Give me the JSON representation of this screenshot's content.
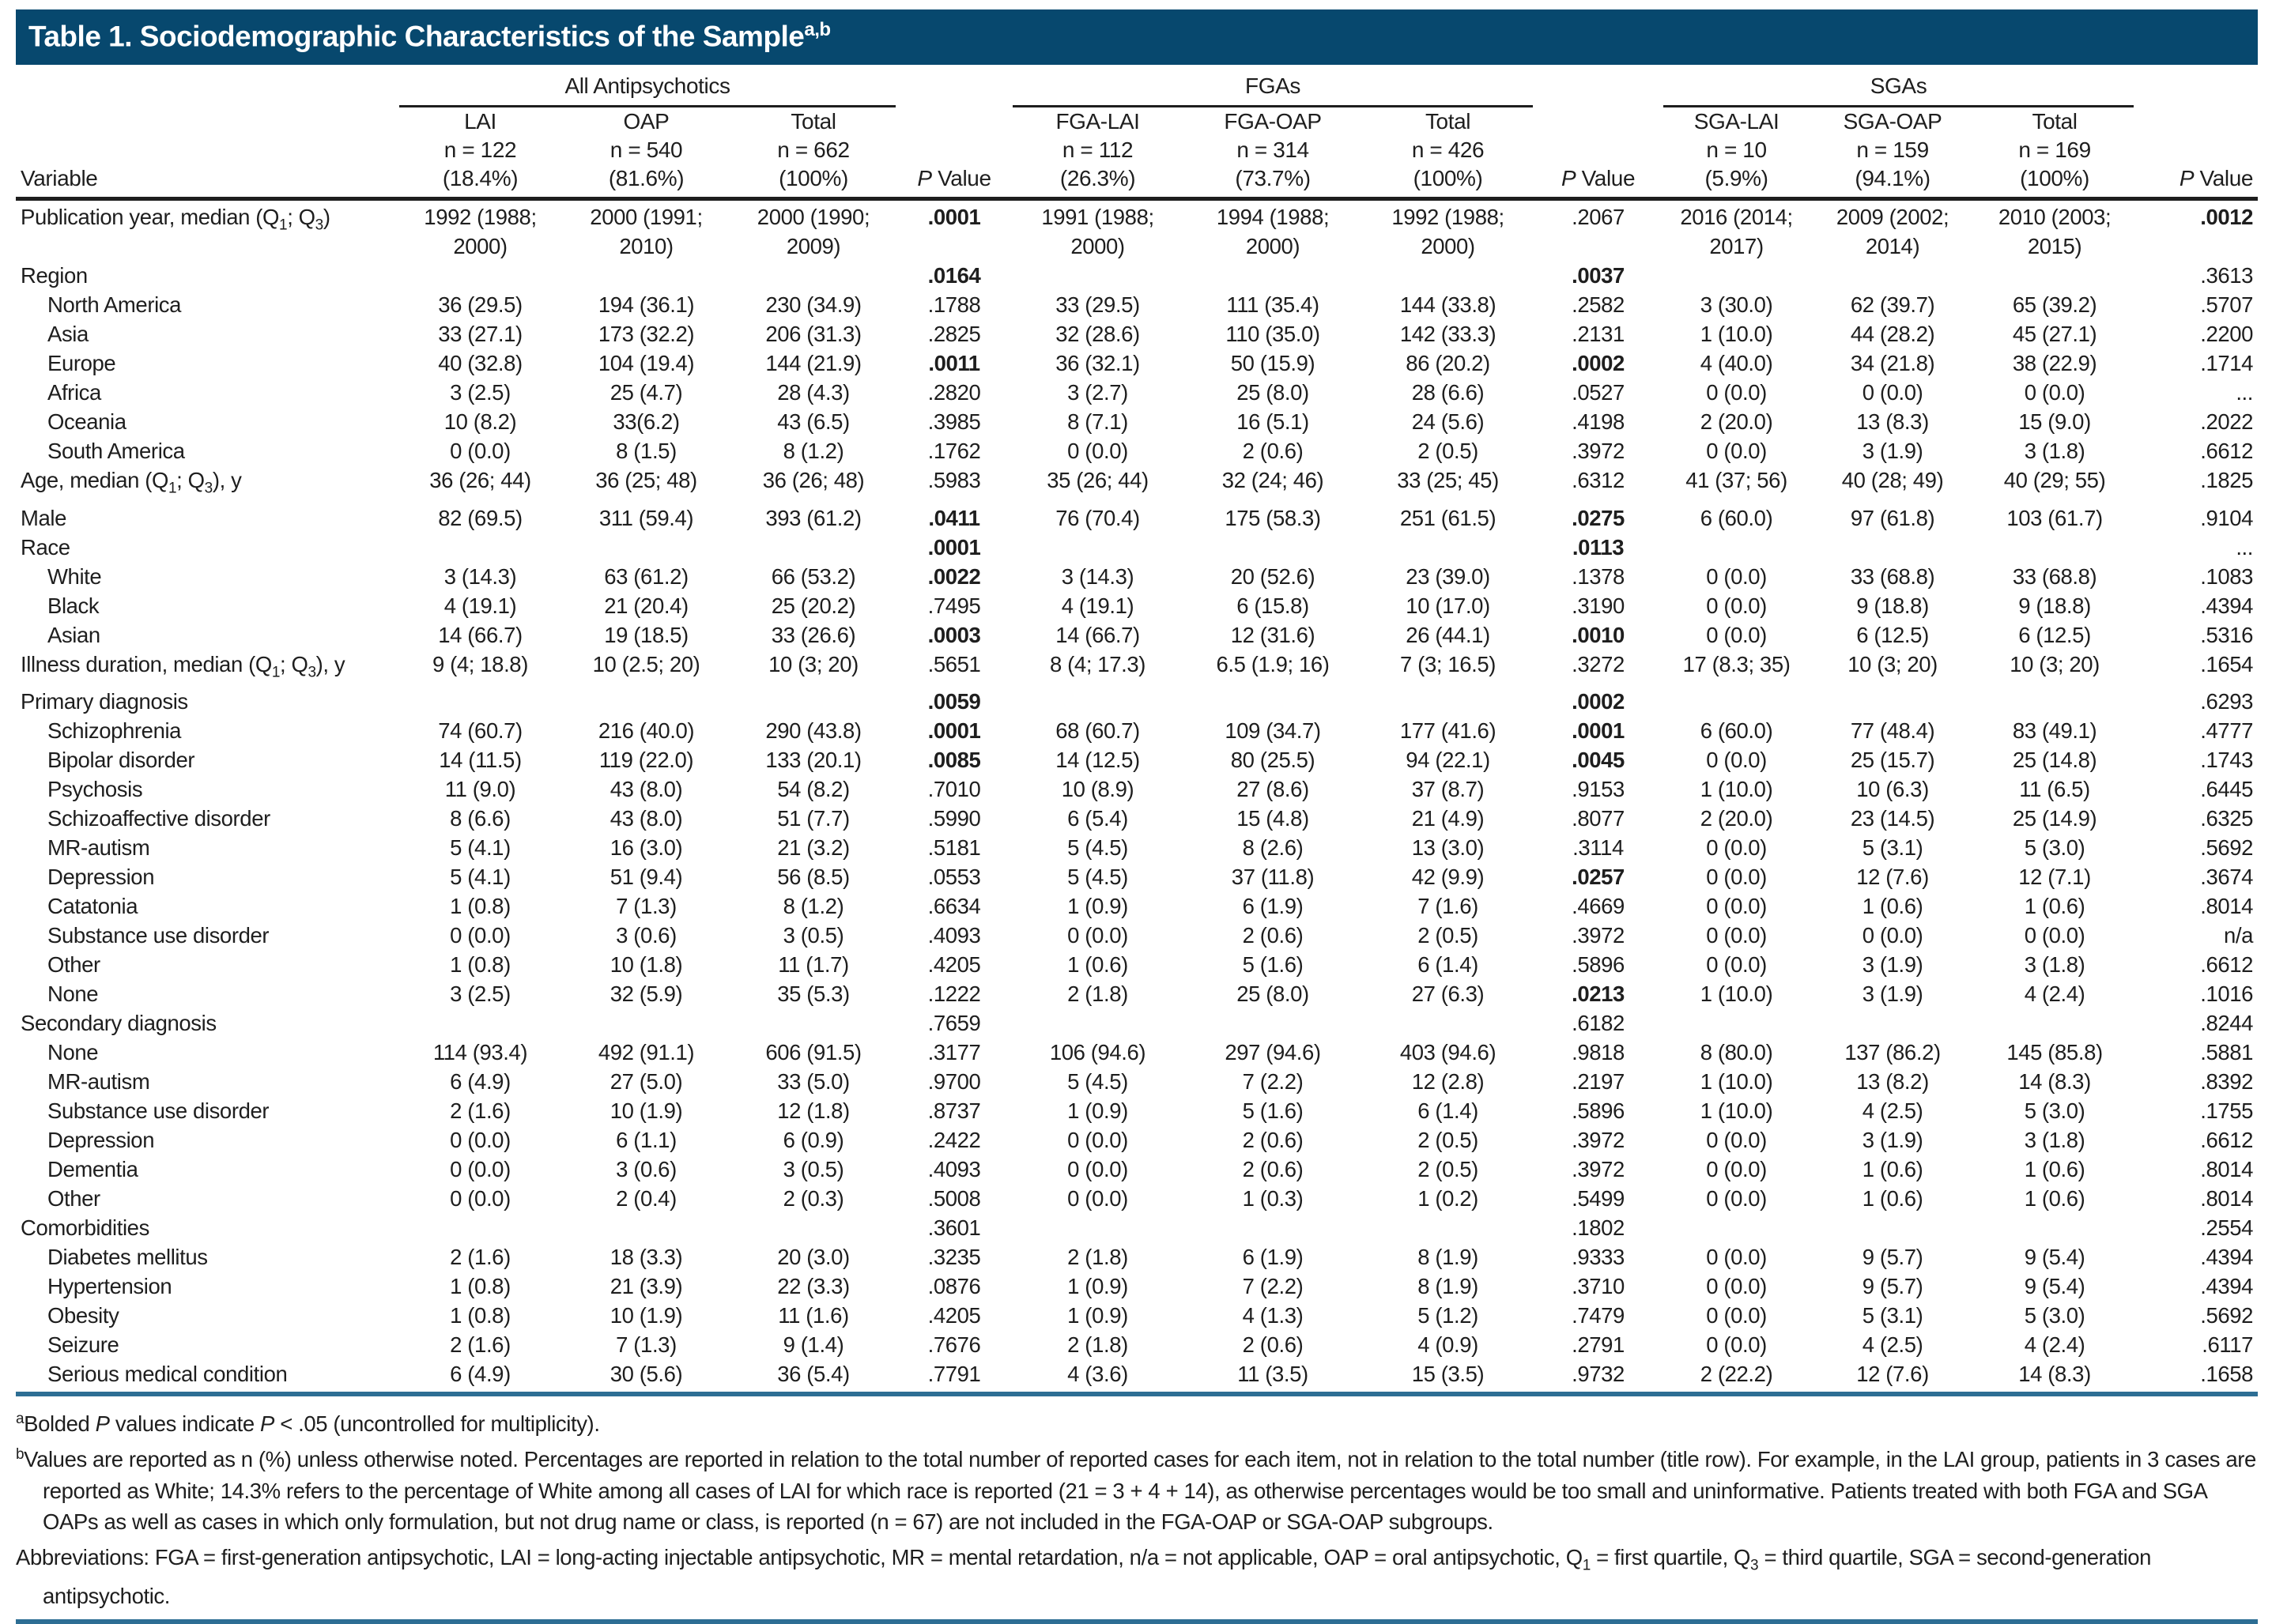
{
  "title": {
    "text": "Table 1. Sociodemographic Characteristics of the Sample",
    "sup": "a,b"
  },
  "colors": {
    "header_bar": "#07486e",
    "rule_blue": "#2d6e94",
    "text": "#1e1e1e"
  },
  "table": {
    "variable_header": "Variable",
    "p_label": "P",
    "value_label": "Value",
    "groups": [
      {
        "label": "All Antipsychotics"
      },
      {
        "label": "FGAs"
      },
      {
        "label": "SGAs"
      }
    ],
    "columns": [
      {
        "name": "LAI",
        "n": "n = 122",
        "pct": "(18.4%)"
      },
      {
        "name": "OAP",
        "n": "n = 540",
        "pct": "(81.6%)"
      },
      {
        "name": "Total",
        "n": "n = 662",
        "pct": "(100%)"
      },
      {
        "name": "FGA-LAI",
        "n": "n = 112",
        "pct": "(26.3%)"
      },
      {
        "name": "FGA-OAP",
        "n": "n = 314",
        "pct": "(73.7%)"
      },
      {
        "name": "Total",
        "n": "n = 426",
        "pct": "(100%)"
      },
      {
        "name": "SGA-LAI",
        "n": "n = 10",
        "pct": "(5.9%)"
      },
      {
        "name": "SGA-OAP",
        "n": "n = 159",
        "pct": "(94.1%)"
      },
      {
        "name": "Total",
        "n": "n = 169",
        "pct": "(100%)"
      }
    ],
    "rows": [
      {
        "label": "Publication year, median (Q1; Q3)",
        "indent": false,
        "cells": [
          "1992 (1988; 2000)",
          "2000 (1991; 2010)",
          "2000 (1990; 2009)",
          ".0001",
          "1991 (1988; 2000)",
          "1994 (1988; 2000)",
          "1992 (1988; 2000)",
          ".2067",
          "2016 (2014; 2017)",
          "2009 (2002; 2014)",
          "2010 (2003; 2015)",
          ".0012"
        ],
        "bold": [
          3,
          11
        ]
      },
      {
        "label": "Region",
        "indent": false,
        "cells": [
          "",
          "",
          "",
          ".0164",
          "",
          "",
          "",
          ".0037",
          "",
          "",
          "",
          ".3613"
        ],
        "bold": [
          3,
          7
        ]
      },
      {
        "label": "North America",
        "indent": true,
        "cells": [
          "36 (29.5)",
          "194 (36.1)",
          "230 (34.9)",
          ".1788",
          "33 (29.5)",
          "111 (35.4)",
          "144 (33.8)",
          ".2582",
          "3 (30.0)",
          "62 (39.7)",
          "65 (39.2)",
          ".5707"
        ],
        "bold": []
      },
      {
        "label": "Asia",
        "indent": true,
        "cells": [
          "33 (27.1)",
          "173 (32.2)",
          "206 (31.3)",
          ".2825",
          "32 (28.6)",
          "110 (35.0)",
          "142 (33.3)",
          ".2131",
          "1 (10.0)",
          "44 (28.2)",
          "45 (27.1)",
          ".2200"
        ],
        "bold": []
      },
      {
        "label": "Europe",
        "indent": true,
        "cells": [
          "40 (32.8)",
          "104 (19.4)",
          "144 (21.9)",
          ".0011",
          "36 (32.1)",
          "50 (15.9)",
          "86 (20.2)",
          ".0002",
          "4 (40.0)",
          "34 (21.8)",
          "38 (22.9)",
          ".1714"
        ],
        "bold": [
          3,
          7
        ]
      },
      {
        "label": "Africa",
        "indent": true,
        "cells": [
          "3 (2.5)",
          "25 (4.7)",
          "28 (4.3)",
          ".2820",
          "3 (2.7)",
          "25 (8.0)",
          "28 (6.6)",
          ".0527",
          "0 (0.0)",
          "0 (0.0)",
          "0 (0.0)",
          "..."
        ],
        "bold": []
      },
      {
        "label": "Oceania",
        "indent": true,
        "cells": [
          "10 (8.2)",
          "33(6.2)",
          "43 (6.5)",
          ".3985",
          "8 (7.1)",
          "16 (5.1)",
          "24 (5.6)",
          ".4198",
          "2 (20.0)",
          "13 (8.3)",
          "15 (9.0)",
          ".2022"
        ],
        "bold": []
      },
      {
        "label": "South America",
        "indent": true,
        "cells": [
          "0 (0.0)",
          "8 (1.5)",
          "8 (1.2)",
          ".1762",
          "0 (0.0)",
          "2 (0.6)",
          "2 (0.5)",
          ".3972",
          "0 (0.0)",
          "3 (1.9)",
          "3 (1.8)",
          ".6612"
        ],
        "bold": []
      },
      {
        "label": "Age, median (Q1; Q3), y",
        "indent": false,
        "cells": [
          "36 (26; 44)",
          "36 (25; 48)",
          "36 (26; 48)",
          ".5983",
          "35 (26; 44)",
          "32 (24; 46)",
          "33 (25; 45)",
          ".6312",
          "41 (37; 56)",
          "40 (28; 49)",
          "40 (29; 55)",
          ".1825"
        ],
        "bold": []
      },
      {
        "label": "Male",
        "indent": false,
        "cells": [
          "82 (69.5)",
          "311 (59.4)",
          "393 (61.2)",
          ".0411",
          "76 (70.4)",
          "175 (58.3)",
          "251 (61.5)",
          ".0275",
          "6 (60.0)",
          "97 (61.8)",
          "103 (61.7)",
          ".9104"
        ],
        "bold": [
          3,
          7
        ]
      },
      {
        "label": "Race",
        "indent": false,
        "cells": [
          "",
          "",
          "",
          ".0001",
          "",
          "",
          "",
          ".0113",
          "",
          "",
          "",
          "..."
        ],
        "bold": [
          3,
          7
        ]
      },
      {
        "label": "White",
        "indent": true,
        "cells": [
          "3 (14.3)",
          "63 (61.2)",
          "66 (53.2)",
          ".0022",
          "3 (14.3)",
          "20 (52.6)",
          "23 (39.0)",
          ".1378",
          "0 (0.0)",
          "33 (68.8)",
          "33 (68.8)",
          ".1083"
        ],
        "bold": [
          3
        ]
      },
      {
        "label": "Black",
        "indent": true,
        "cells": [
          "4 (19.1)",
          "21 (20.4)",
          "25 (20.2)",
          ".7495",
          "4 (19.1)",
          "6 (15.8)",
          "10 (17.0)",
          ".3190",
          "0 (0.0)",
          "9 (18.8)",
          "9 (18.8)",
          ".4394"
        ],
        "bold": []
      },
      {
        "label": "Asian",
        "indent": true,
        "cells": [
          "14 (66.7)",
          "19 (18.5)",
          "33 (26.6)",
          ".0003",
          "14 (66.7)",
          "12 (31.6)",
          "26 (44.1)",
          ".0010",
          "0 (0.0)",
          "6 (12.5)",
          "6 (12.5)",
          ".5316"
        ],
        "bold": [
          3,
          7
        ]
      },
      {
        "label": "Illness duration, median (Q1; Q3), y",
        "indent": false,
        "cells": [
          "9 (4; 18.8)",
          "10 (2.5; 20)",
          "10 (3; 20)",
          ".5651",
          "8 (4; 17.3)",
          "6.5 (1.9; 16)",
          "7 (3; 16.5)",
          ".3272",
          "17 (8.3; 35)",
          "10 (3; 20)",
          "10 (3; 20)",
          ".1654"
        ],
        "bold": []
      },
      {
        "label": "Primary diagnosis",
        "indent": false,
        "cells": [
          "",
          "",
          "",
          ".0059",
          "",
          "",
          "",
          ".0002",
          "",
          "",
          "",
          ".6293"
        ],
        "bold": [
          3,
          7
        ]
      },
      {
        "label": "Schizophrenia",
        "indent": true,
        "cells": [
          "74 (60.7)",
          "216 (40.0)",
          "290 (43.8)",
          ".0001",
          "68 (60.7)",
          "109 (34.7)",
          "177 (41.6)",
          ".0001",
          "6 (60.0)",
          "77 (48.4)",
          "83 (49.1)",
          ".4777"
        ],
        "bold": [
          3,
          7
        ]
      },
      {
        "label": "Bipolar disorder",
        "indent": true,
        "cells": [
          "14 (11.5)",
          "119 (22.0)",
          "133 (20.1)",
          ".0085",
          "14 (12.5)",
          "80 (25.5)",
          "94 (22.1)",
          ".0045",
          "0 (0.0)",
          "25 (15.7)",
          "25 (14.8)",
          ".1743"
        ],
        "bold": [
          3,
          7
        ]
      },
      {
        "label": "Psychosis",
        "indent": true,
        "cells": [
          "11 (9.0)",
          "43 (8.0)",
          "54 (8.2)",
          ".7010",
          "10 (8.9)",
          "27 (8.6)",
          "37 (8.7)",
          ".9153",
          "1 (10.0)",
          "10 (6.3)",
          "11 (6.5)",
          ".6445"
        ],
        "bold": []
      },
      {
        "label": "Schizoaffective disorder",
        "indent": true,
        "cells": [
          "8 (6.6)",
          "43 (8.0)",
          "51 (7.7)",
          ".5990",
          "6 (5.4)",
          "15 (4.8)",
          "21 (4.9)",
          ".8077",
          "2 (20.0)",
          "23 (14.5)",
          "25 (14.9)",
          ".6325"
        ],
        "bold": []
      },
      {
        "label": "MR-autism",
        "indent": true,
        "cells": [
          "5 (4.1)",
          "16 (3.0)",
          "21 (3.2)",
          ".5181",
          "5 (4.5)",
          "8 (2.6)",
          "13 (3.0)",
          ".3114",
          "0 (0.0)",
          "5 (3.1)",
          "5 (3.0)",
          ".5692"
        ],
        "bold": []
      },
      {
        "label": "Depression",
        "indent": true,
        "cells": [
          "5 (4.1)",
          "51 (9.4)",
          "56 (8.5)",
          ".0553",
          "5 (4.5)",
          "37 (11.8)",
          "42 (9.9)",
          ".0257",
          "0 (0.0)",
          "12 (7.6)",
          "12 (7.1)",
          ".3674"
        ],
        "bold": [
          7
        ]
      },
      {
        "label": "Catatonia",
        "indent": true,
        "cells": [
          "1 (0.8)",
          "7 (1.3)",
          "8 (1.2)",
          ".6634",
          "1 (0.9)",
          "6 (1.9)",
          "7 (1.6)",
          ".4669",
          "0 (0.0)",
          "1 (0.6)",
          "1 (0.6)",
          ".8014"
        ],
        "bold": []
      },
      {
        "label": "Substance use disorder",
        "indent": true,
        "cells": [
          "0 (0.0)",
          "3 (0.6)",
          "3 (0.5)",
          ".4093",
          "0 (0.0)",
          "2 (0.6)",
          "2 (0.5)",
          ".3972",
          "0 (0.0)",
          "0 (0.0)",
          "0 (0.0)",
          "n/a"
        ],
        "bold": []
      },
      {
        "label": "Other",
        "indent": true,
        "cells": [
          "1 (0.8)",
          "10 (1.8)",
          "11 (1.7)",
          ".4205",
          "1 (0.6)",
          "5 (1.6)",
          "6 (1.4)",
          ".5896",
          "0 (0.0)",
          "3 (1.9)",
          "3 (1.8)",
          ".6612"
        ],
        "bold": []
      },
      {
        "label": "None",
        "indent": true,
        "cells": [
          "3 (2.5)",
          "32 (5.9)",
          "35 (5.3)",
          ".1222",
          "2 (1.8)",
          "25 (8.0)",
          "27 (6.3)",
          ".0213",
          "1 (10.0)",
          "3 (1.9)",
          "4 (2.4)",
          ".1016"
        ],
        "bold": [
          7
        ]
      },
      {
        "label": "Secondary diagnosis",
        "indent": false,
        "cells": [
          "",
          "",
          "",
          ".7659",
          "",
          "",
          "",
          ".6182",
          "",
          "",
          "",
          ".8244"
        ],
        "bold": []
      },
      {
        "label": "None",
        "indent": true,
        "cells": [
          "114 (93.4)",
          "492 (91.1)",
          "606 (91.5)",
          ".3177",
          "106 (94.6)",
          "297 (94.6)",
          "403 (94.6)",
          ".9818",
          "8 (80.0)",
          "137 (86.2)",
          "145 (85.8)",
          ".5881"
        ],
        "bold": []
      },
      {
        "label": "MR-autism",
        "indent": true,
        "cells": [
          "6 (4.9)",
          "27 (5.0)",
          "33 (5.0)",
          ".9700",
          "5 (4.5)",
          "7 (2.2)",
          "12 (2.8)",
          ".2197",
          "1 (10.0)",
          "13 (8.2)",
          "14 (8.3)",
          ".8392"
        ],
        "bold": []
      },
      {
        "label": "Substance use disorder",
        "indent": true,
        "cells": [
          "2 (1.6)",
          "10 (1.9)",
          "12 (1.8)",
          ".8737",
          "1 (0.9)",
          "5 (1.6)",
          "6 (1.4)",
          ".5896",
          "1 (10.0)",
          "4 (2.5)",
          "5 (3.0)",
          ".1755"
        ],
        "bold": []
      },
      {
        "label": "Depression",
        "indent": true,
        "cells": [
          "0 (0.0)",
          "6 (1.1)",
          "6 (0.9)",
          ".2422",
          "0 (0.0)",
          "2 (0.6)",
          "2 (0.5)",
          ".3972",
          "0 (0.0)",
          "3 (1.9)",
          "3 (1.8)",
          ".6612"
        ],
        "bold": []
      },
      {
        "label": "Dementia",
        "indent": true,
        "cells": [
          "0 (0.0)",
          "3 (0.6)",
          "3 (0.5)",
          ".4093",
          "0 (0.0)",
          "2 (0.6)",
          "2 (0.5)",
          ".3972",
          "0 (0.0)",
          "1 (0.6)",
          "1 (0.6)",
          ".8014"
        ],
        "bold": []
      },
      {
        "label": "Other",
        "indent": true,
        "cells": [
          "0 (0.0)",
          "2 (0.4)",
          "2 (0.3)",
          ".5008",
          "0 (0.0)",
          "1 (0.3)",
          "1 (0.2)",
          ".5499",
          "0 (0.0)",
          "1 (0.6)",
          "1 (0.6)",
          ".8014"
        ],
        "bold": []
      },
      {
        "label": "Comorbidities",
        "indent": false,
        "cells": [
          "",
          "",
          "",
          ".3601",
          "",
          "",
          "",
          ".1802",
          "",
          "",
          "",
          ".2554"
        ],
        "bold": []
      },
      {
        "label": "Diabetes mellitus",
        "indent": true,
        "cells": [
          "2 (1.6)",
          "18 (3.3)",
          "20 (3.0)",
          ".3235",
          "2 (1.8)",
          "6 (1.9)",
          "8 (1.9)",
          ".9333",
          "0 (0.0)",
          "9 (5.7)",
          "9 (5.4)",
          ".4394"
        ],
        "bold": []
      },
      {
        "label": "Hypertension",
        "indent": true,
        "cells": [
          "1 (0.8)",
          "21 (3.9)",
          "22 (3.3)",
          ".0876",
          "1 (0.9)",
          "7 (2.2)",
          "8 (1.9)",
          ".3710",
          "0 (0.0)",
          "9 (5.7)",
          "9 (5.4)",
          ".4394"
        ],
        "bold": []
      },
      {
        "label": "Obesity",
        "indent": true,
        "cells": [
          "1 (0.8)",
          "10 (1.9)",
          "11 (1.6)",
          ".4205",
          "1 (0.9)",
          "4 (1.3)",
          "5 (1.2)",
          ".7479",
          "0 (0.0)",
          "5 (3.1)",
          "5 (3.0)",
          ".5692"
        ],
        "bold": []
      },
      {
        "label": "Seizure",
        "indent": true,
        "cells": [
          "2 (1.6)",
          "7 (1.3)",
          "9 (1.4)",
          ".7676",
          "2 (1.8)",
          "2 (0.6)",
          "4 (0.9)",
          ".2791",
          "0 (0.0)",
          "4 (2.5)",
          "4 (2.4)",
          ".6117"
        ],
        "bold": []
      },
      {
        "label": "Serious medical condition",
        "indent": true,
        "cells": [
          "6 (4.9)",
          "30 (5.6)",
          "36 (5.4)",
          ".7791",
          "4 (3.6)",
          "11 (3.5)",
          "15 (3.5)",
          ".9732",
          "2 (22.2)",
          "12 (7.6)",
          "14 (8.3)",
          ".1658"
        ],
        "bold": []
      }
    ]
  },
  "footnotes": [
    {
      "mark": "a",
      "text": "Bolded P values indicate P < .05 (uncontrolled for multiplicity)."
    },
    {
      "mark": "b",
      "text": "Values are reported as n (%) unless otherwise noted. Percentages are reported in relation to the total number of reported cases for each item, not in relation to the total number (title row). For example, in the LAI group, patients in 3 cases are reported as White; 14.3% refers to the percentage of White among all cases of LAI for which race is reported (21 = 3 + 4 + 14), as otherwise percentages would be too small and uninformative. Patients treated with both FGA and SGA OAPs as well as cases in which only formulation, but not drug name or class, is reported (n = 67) are not included in the FGA-OAP or SGA-OAP subgroups."
    },
    {
      "mark": "",
      "text": "Abbreviations: FGA = first-generation antipsychotic, LAI = long-acting injectable antipsychotic, MR = mental retardation, n/a = not applicable, OAP = oral antipsychotic, Q1 = first quartile, Q3 = third quartile, SGA = second-generation antipsychotic."
    }
  ]
}
